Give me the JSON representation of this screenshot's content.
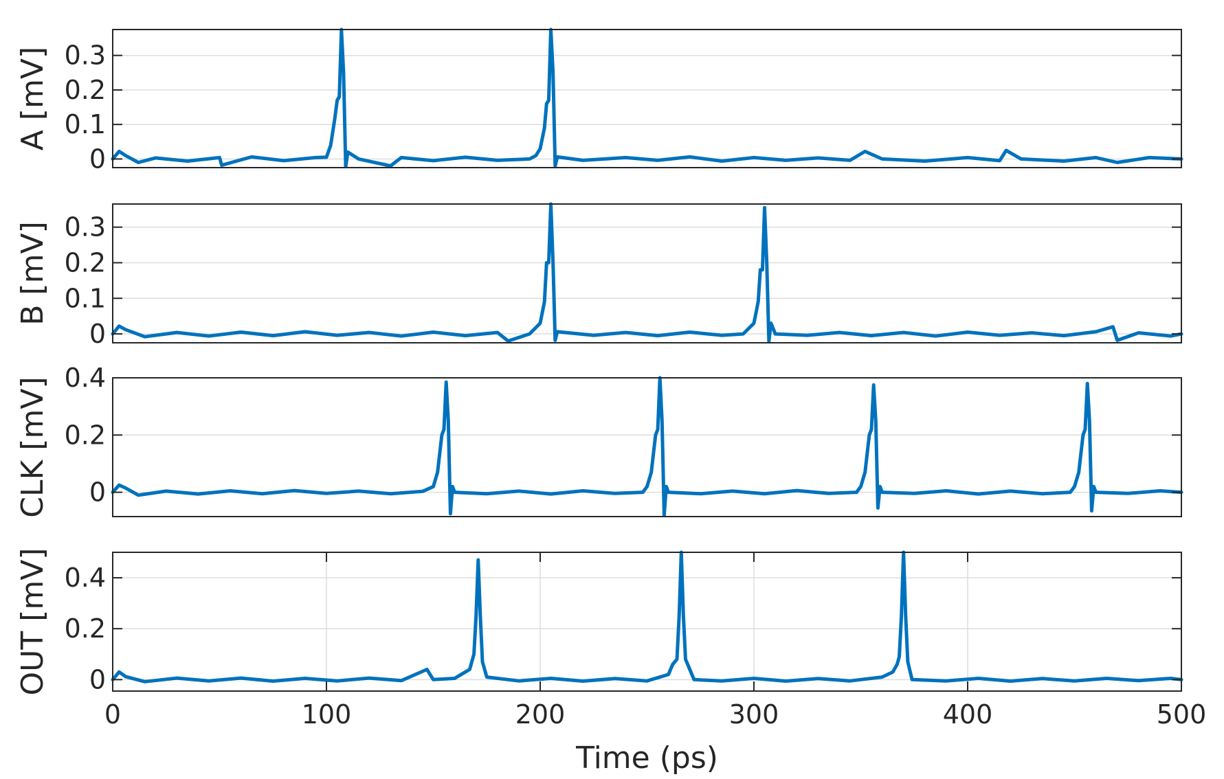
{
  "chart_data": [
    {
      "type": "line",
      "ylabel": "A [mV]",
      "xlim": [
        0,
        500
      ],
      "ylim": [
        -0.025,
        0.375
      ],
      "yticks": [
        0,
        0.1,
        0.2,
        0.3
      ],
      "ytick_labels": [
        "0",
        "0.1",
        "0.2",
        "0.3"
      ],
      "grid_x": false,
      "grid_y": true,
      "show_xticklabels": false,
      "series": [
        {
          "color": "#0072BD",
          "points": [
            [
              0,
              0.0
            ],
            [
              3,
              0.022
            ],
            [
              6,
              0.01
            ],
            [
              12,
              -0.01
            ],
            [
              20,
              0.003
            ],
            [
              35,
              -0.006
            ],
            [
              50,
              0.004
            ],
            [
              51,
              -0.018
            ],
            [
              65,
              0.006
            ],
            [
              80,
              -0.005
            ],
            [
              95,
              0.004
            ],
            [
              100,
              0.005
            ],
            [
              102,
              0.04
            ],
            [
              104,
              0.12
            ],
            [
              105,
              0.17
            ],
            [
              106,
              0.18
            ],
            [
              107,
              0.375
            ],
            [
              108,
              0.25
            ],
            [
              109,
              -0.022
            ],
            [
              110,
              0.02
            ],
            [
              115,
              0.0
            ],
            [
              130,
              -0.02
            ],
            [
              135,
              0.004
            ],
            [
              150,
              -0.005
            ],
            [
              165,
              0.005
            ],
            [
              180,
              -0.004
            ],
            [
              195,
              0.0
            ],
            [
              198,
              0.01
            ],
            [
              200,
              0.03
            ],
            [
              202,
              0.09
            ],
            [
              203,
              0.16
            ],
            [
              204,
              0.17
            ],
            [
              205,
              0.375
            ],
            [
              206,
              0.25
            ],
            [
              207,
              -0.02
            ],
            [
              208,
              0.006
            ],
            [
              220,
              -0.004
            ],
            [
              240,
              0.004
            ],
            [
              255,
              -0.004
            ],
            [
              270,
              0.006
            ],
            [
              285,
              -0.006
            ],
            [
              300,
              0.004
            ],
            [
              315,
              -0.004
            ],
            [
              330,
              0.003
            ],
            [
              345,
              -0.004
            ],
            [
              352,
              0.022
            ],
            [
              360,
              0.0
            ],
            [
              380,
              -0.006
            ],
            [
              400,
              0.004
            ],
            [
              415,
              -0.005
            ],
            [
              418,
              0.025
            ],
            [
              425,
              0.0
            ],
            [
              445,
              -0.006
            ],
            [
              460,
              0.004
            ],
            [
              470,
              -0.01
            ],
            [
              485,
              0.004
            ],
            [
              500,
              0.0
            ]
          ]
        }
      ]
    },
    {
      "type": "line",
      "ylabel": "B [mV]",
      "xlim": [
        0,
        500
      ],
      "ylim": [
        -0.025,
        0.365
      ],
      "yticks": [
        0,
        0.1,
        0.2,
        0.3
      ],
      "ytick_labels": [
        "0",
        "0.1",
        "0.2",
        "0.3"
      ],
      "grid_x": false,
      "grid_y": true,
      "show_xticklabels": false,
      "series": [
        {
          "color": "#0072BD",
          "points": [
            [
              0,
              0.0
            ],
            [
              3,
              0.022
            ],
            [
              6,
              0.012
            ],
            [
              15,
              -0.008
            ],
            [
              30,
              0.004
            ],
            [
              45,
              -0.006
            ],
            [
              60,
              0.005
            ],
            [
              75,
              -0.005
            ],
            [
              90,
              0.006
            ],
            [
              105,
              -0.004
            ],
            [
              120,
              0.004
            ],
            [
              135,
              -0.006
            ],
            [
              150,
              0.005
            ],
            [
              165,
              -0.005
            ],
            [
              180,
              0.004
            ],
            [
              185,
              -0.02
            ],
            [
              195,
              0.0
            ],
            [
              200,
              0.03
            ],
            [
              202,
              0.09
            ],
            [
              203,
              0.2
            ],
            [
              204,
              0.2
            ],
            [
              205,
              0.365
            ],
            [
              206,
              0.2
            ],
            [
              207,
              -0.018
            ],
            [
              208,
              0.006
            ],
            [
              225,
              -0.004
            ],
            [
              240,
              0.004
            ],
            [
              255,
              -0.005
            ],
            [
              270,
              0.005
            ],
            [
              285,
              -0.004
            ],
            [
              295,
              0.0
            ],
            [
              300,
              0.03
            ],
            [
              302,
              0.09
            ],
            [
              303,
              0.18
            ],
            [
              304,
              0.18
            ],
            [
              305,
              0.355
            ],
            [
              306,
              0.2
            ],
            [
              307,
              -0.02
            ],
            [
              308,
              0.03
            ],
            [
              310,
              0.0
            ],
            [
              325,
              -0.004
            ],
            [
              340,
              0.004
            ],
            [
              355,
              -0.005
            ],
            [
              370,
              0.004
            ],
            [
              385,
              -0.006
            ],
            [
              400,
              0.005
            ],
            [
              415,
              -0.004
            ],
            [
              430,
              0.003
            ],
            [
              445,
              -0.005
            ],
            [
              460,
              0.006
            ],
            [
              468,
              0.02
            ],
            [
              470,
              -0.018
            ],
            [
              480,
              0.003
            ],
            [
              495,
              -0.006
            ],
            [
              500,
              0.0
            ]
          ]
        }
      ]
    },
    {
      "type": "line",
      "ylabel": "CLK [mV]",
      "xlim": [
        0,
        500
      ],
      "ylim": [
        -0.085,
        0.4
      ],
      "yticks": [
        0,
        0.2,
        0.4
      ],
      "ytick_labels": [
        "0",
        "0.2",
        "0.4"
      ],
      "grid_x": false,
      "grid_y": true,
      "show_xticklabels": false,
      "series": [
        {
          "color": "#0072BD",
          "points": [
            [
              0,
              0.0
            ],
            [
              3,
              0.025
            ],
            [
              6,
              0.015
            ],
            [
              12,
              -0.01
            ],
            [
              25,
              0.004
            ],
            [
              40,
              -0.006
            ],
            [
              55,
              0.005
            ],
            [
              70,
              -0.005
            ],
            [
              85,
              0.006
            ],
            [
              100,
              -0.004
            ],
            [
              115,
              0.004
            ],
            [
              130,
              -0.005
            ],
            [
              145,
              0.003
            ],
            [
              150,
              0.02
            ],
            [
              152,
              0.07
            ],
            [
              154,
              0.2
            ],
            [
              155,
              0.22
            ],
            [
              156,
              0.385
            ],
            [
              157,
              0.25
            ],
            [
              158,
              -0.075
            ],
            [
              159,
              0.02
            ],
            [
              160,
              0.0
            ],
            [
              175,
              -0.005
            ],
            [
              190,
              0.004
            ],
            [
              205,
              -0.006
            ],
            [
              220,
              0.005
            ],
            [
              235,
              -0.004
            ],
            [
              248,
              0.0
            ],
            [
              250,
              0.02
            ],
            [
              252,
              0.07
            ],
            [
              254,
              0.2
            ],
            [
              255,
              0.22
            ],
            [
              256,
              0.4
            ],
            [
              257,
              0.25
            ],
            [
              258,
              -0.08
            ],
            [
              259,
              0.02
            ],
            [
              260,
              0.0
            ],
            [
              275,
              -0.005
            ],
            [
              290,
              0.004
            ],
            [
              305,
              -0.005
            ],
            [
              320,
              0.006
            ],
            [
              335,
              -0.004
            ],
            [
              348,
              0.0
            ],
            [
              350,
              0.02
            ],
            [
              352,
              0.07
            ],
            [
              354,
              0.2
            ],
            [
              355,
              0.22
            ],
            [
              356,
              0.375
            ],
            [
              357,
              0.25
            ],
            [
              358,
              -0.055
            ],
            [
              359,
              0.02
            ],
            [
              360,
              0.0
            ],
            [
              375,
              -0.004
            ],
            [
              390,
              0.005
            ],
            [
              405,
              -0.006
            ],
            [
              420,
              0.004
            ],
            [
              435,
              -0.005
            ],
            [
              448,
              0.0
            ],
            [
              450,
              0.02
            ],
            [
              452,
              0.07
            ],
            [
              454,
              0.2
            ],
            [
              455,
              0.22
            ],
            [
              456,
              0.38
            ],
            [
              457,
              0.25
            ],
            [
              458,
              -0.065
            ],
            [
              459,
              0.02
            ],
            [
              460,
              0.0
            ],
            [
              475,
              -0.004
            ],
            [
              490,
              0.005
            ],
            [
              500,
              0.0
            ]
          ]
        }
      ]
    },
    {
      "type": "line",
      "ylabel": "OUT [mV]",
      "xlabel": "Time (ps)",
      "xlim": [
        0,
        500
      ],
      "ylim": [
        -0.045,
        0.5
      ],
      "xticks": [
        0,
        100,
        200,
        300,
        400,
        500
      ],
      "xtick_labels": [
        "0",
        "100",
        "200",
        "300",
        "400",
        "500"
      ],
      "yticks": [
        0,
        0.2,
        0.4
      ],
      "ytick_labels": [
        "0",
        "0.2",
        "0.4"
      ],
      "grid_x": true,
      "grid_y": true,
      "show_xticklabels": true,
      "series": [
        {
          "color": "#0072BD",
          "points": [
            [
              0,
              0.0
            ],
            [
              3,
              0.03
            ],
            [
              6,
              0.012
            ],
            [
              15,
              -0.008
            ],
            [
              30,
              0.006
            ],
            [
              45,
              -0.005
            ],
            [
              60,
              0.006
            ],
            [
              75,
              -0.006
            ],
            [
              90,
              0.005
            ],
            [
              105,
              -0.005
            ],
            [
              120,
              0.006
            ],
            [
              135,
              -0.004
            ],
            [
              147,
              0.04
            ],
            [
              150,
              0.0
            ],
            [
              160,
              0.005
            ],
            [
              165,
              0.03
            ],
            [
              167,
              0.04
            ],
            [
              169,
              0.1
            ],
            [
              170,
              0.25
            ],
            [
              171,
              0.47
            ],
            [
              172,
              0.25
            ],
            [
              173,
              0.07
            ],
            [
              175,
              0.01
            ],
            [
              190,
              -0.005
            ],
            [
              205,
              0.005
            ],
            [
              220,
              -0.006
            ],
            [
              235,
              0.004
            ],
            [
              250,
              -0.005
            ],
            [
              260,
              0.02
            ],
            [
              262,
              0.06
            ],
            [
              264,
              0.08
            ],
            [
              265,
              0.25
            ],
            [
              266,
              0.5
            ],
            [
              267,
              0.25
            ],
            [
              268,
              0.08
            ],
            [
              270,
              0.04
            ],
            [
              272,
              0.0
            ],
            [
              285,
              -0.005
            ],
            [
              300,
              0.005
            ],
            [
              315,
              -0.006
            ],
            [
              330,
              0.004
            ],
            [
              345,
              -0.005
            ],
            [
              360,
              0.01
            ],
            [
              365,
              0.03
            ],
            [
              367,
              0.06
            ],
            [
              368,
              0.09
            ],
            [
              369,
              0.25
            ],
            [
              370,
              0.5
            ],
            [
              371,
              0.25
            ],
            [
              372,
              0.07
            ],
            [
              374,
              0.0
            ],
            [
              390,
              -0.005
            ],
            [
              405,
              0.005
            ],
            [
              420,
              -0.006
            ],
            [
              435,
              0.004
            ],
            [
              450,
              -0.005
            ],
            [
              465,
              0.005
            ],
            [
              480,
              -0.004
            ],
            [
              495,
              0.005
            ],
            [
              500,
              0.0
            ]
          ]
        }
      ]
    }
  ]
}
